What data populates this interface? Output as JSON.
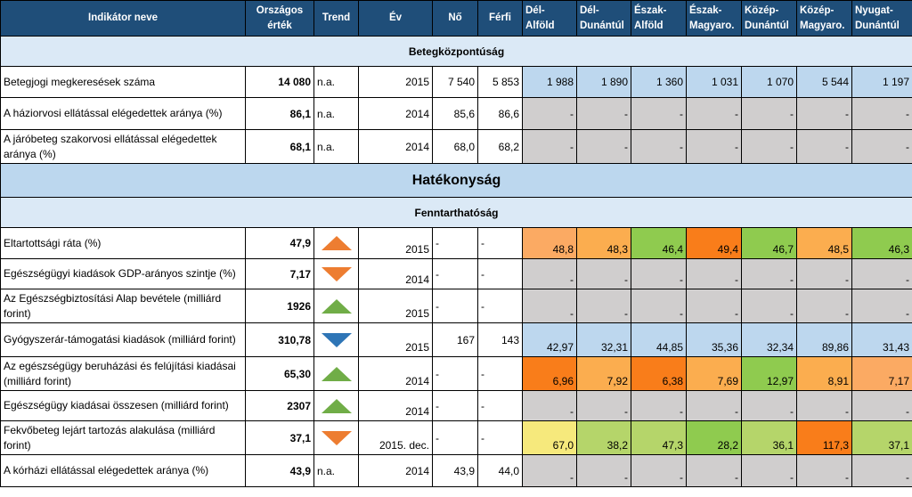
{
  "headers": {
    "name": "Indikátor neve",
    "national": [
      "Országos",
      "érték"
    ],
    "trend": "Trend",
    "year": "Év",
    "female": "Nő",
    "male": "Férfi",
    "regions": [
      [
        "Dél-",
        "Alföld"
      ],
      [
        "Dél-",
        "Dunántúl"
      ],
      [
        "Észak-",
        "Alföld"
      ],
      [
        "Észak-",
        "Magyaro."
      ],
      [
        "Közép-",
        "Dunántúl"
      ],
      [
        "Közép-",
        "Magyaro."
      ],
      [
        "Nyugat-",
        "Dunántúl"
      ]
    ]
  },
  "sections": {
    "patient_centered": "Betegközpontúság",
    "efficiency": "Hatékonyság",
    "sustainability": "Fenntarthatóság"
  },
  "colors": {
    "header_bg": "#1f4e79",
    "light_blue": "#bdd7ee",
    "grey": "#d0cece",
    "red": "#f8696b",
    "orange_dark": "#f97d1a",
    "orange": "#fbad4f",
    "yellow": "#f3e97d",
    "green_light": "#b5d56a",
    "green": "#8fcb4f",
    "triangle_up": "#70ad47",
    "triangle_down": "#ed7d31",
    "triangle_blue": "#2e75b6"
  },
  "rows": [
    {
      "name": "Betegjogi megkeresések száma",
      "national": "14 080",
      "trend_text": "n.a.",
      "trend_icon": "",
      "year": "2015",
      "female": "7 540",
      "male": "5 853",
      "regions": [
        "1 988",
        "1 890",
        "1 360",
        "1 031",
        "1 070",
        "5 544",
        "1 197"
      ],
      "region_colors": [
        "light_blue",
        "light_blue",
        "light_blue",
        "light_blue",
        "light_blue",
        "light_blue",
        "light_blue"
      ]
    },
    {
      "name": "A háziorvosi ellátással elégedettek aránya (%)",
      "national": "86,1",
      "trend_text": "n.a.",
      "trend_icon": "",
      "year": "2014",
      "female": "85,6",
      "male": "86,6",
      "regions": [
        "-",
        "-",
        "-",
        "-",
        "-",
        "-",
        "-"
      ],
      "region_colors": [
        "grey",
        "grey",
        "grey",
        "grey",
        "grey",
        "grey",
        "grey"
      ]
    },
    {
      "name": "A járóbeteg szakorvosi ellátással elégedettek aránya (%)",
      "national": "68,1",
      "trend_text": "n.a.",
      "trend_icon": "",
      "year": "2014",
      "female": "68,0",
      "male": "68,2",
      "regions": [
        "-",
        "-",
        "-",
        "-",
        "-",
        "-",
        "-"
      ],
      "region_colors": [
        "grey",
        "grey",
        "grey",
        "grey",
        "grey",
        "grey",
        "grey"
      ]
    },
    {
      "name": "Eltartottsági ráta (%)",
      "national": "47,9",
      "trend_text": "",
      "trend_icon": "up-orange",
      "year": "2015",
      "female": "-",
      "male": "-",
      "regions": [
        "48,8",
        "48,3",
        "46,4",
        "49,4",
        "46,7",
        "48,5",
        "46,3"
      ],
      "region_colors": [
        "salmon",
        "orange",
        "green",
        "orange_dark",
        "green",
        "orange",
        "green"
      ]
    },
    {
      "name": "Egészségügyi kiadások GDP-arányos szintje (%)",
      "national": "7,17",
      "trend_text": "",
      "trend_icon": "down-orange",
      "year": "2014",
      "female": "-",
      "male": "-",
      "regions": [
        "-",
        "-",
        "-",
        "-",
        "-",
        "-",
        "-"
      ],
      "region_colors": [
        "grey",
        "grey",
        "grey",
        "grey",
        "grey",
        "grey",
        "grey"
      ]
    },
    {
      "name": "Az Egészségbiztosítási Alap bevétele (milliárd forint)",
      "national": "1926",
      "trend_text": "",
      "trend_icon": "up-green",
      "year": "2015",
      "female": "-",
      "male": "-",
      "regions": [
        "-",
        "-",
        "-",
        "-",
        "-",
        "-",
        "-"
      ],
      "region_colors": [
        "grey",
        "grey",
        "grey",
        "grey",
        "grey",
        "grey",
        "grey"
      ]
    },
    {
      "name": "Gyógyszerár-támogatási kiadások (milliárd forint)",
      "national": "310,78",
      "trend_text": "",
      "trend_icon": "down-blue",
      "year": "2015",
      "female": "167",
      "male": "143",
      "regions": [
        "42,97",
        "32,31",
        "44,85",
        "35,36",
        "32,34",
        "89,86",
        "31,43"
      ],
      "region_colors": [
        "light_blue",
        "light_blue",
        "light_blue",
        "light_blue",
        "light_blue",
        "light_blue",
        "light_blue"
      ]
    },
    {
      "name": "Az egészségügy beruházási és felújítási kiadásai (milliárd forint)",
      "national": "65,30",
      "trend_text": "",
      "trend_icon": "up-green",
      "year": "2014",
      "female": "-",
      "male": "-",
      "regions": [
        "6,96",
        "7,92",
        "6,38",
        "7,69",
        "12,97",
        "8,91",
        "7,17"
      ],
      "region_colors": [
        "orange_dark",
        "orange",
        "orange_dark",
        "orange",
        "green",
        "orange",
        "salmon"
      ]
    },
    {
      "name": "Egészségügy kiadásai összesen (milliárd forint)",
      "national": "2307",
      "trend_text": "",
      "trend_icon": "up-green",
      "year": "2014",
      "female": "-",
      "male": "-",
      "regions": [
        "-",
        "-",
        "-",
        "-",
        "-",
        "-",
        "-"
      ],
      "region_colors": [
        "grey",
        "grey",
        "grey",
        "grey",
        "grey",
        "grey",
        "grey"
      ]
    },
    {
      "name": "Fekvőbeteg lejárt tartozás alakulása (milliárd forint)",
      "national": "37,1",
      "trend_text": "",
      "trend_icon": "down-orange",
      "year": "2015. dec.",
      "female": "-",
      "male": "-",
      "regions": [
        "67,0",
        "38,2",
        "47,3",
        "28,2",
        "36,1",
        "117,3",
        "37,1"
      ],
      "region_colors": [
        "yellow",
        "green_light",
        "green_light",
        "green",
        "green_light",
        "orange_dark",
        "green_light"
      ]
    },
    {
      "name": "A kórházi ellátással elégedettek aránya (%)",
      "national": "43,9",
      "trend_text": "n.a.",
      "trend_icon": "",
      "year": "2014",
      "female": "43,9",
      "male": "44,0",
      "regions": [
        "-",
        "-",
        "-",
        "-",
        "-",
        "-",
        "-"
      ],
      "region_colors": [
        "grey",
        "grey",
        "grey",
        "grey",
        "grey",
        "grey",
        "grey"
      ]
    }
  ]
}
